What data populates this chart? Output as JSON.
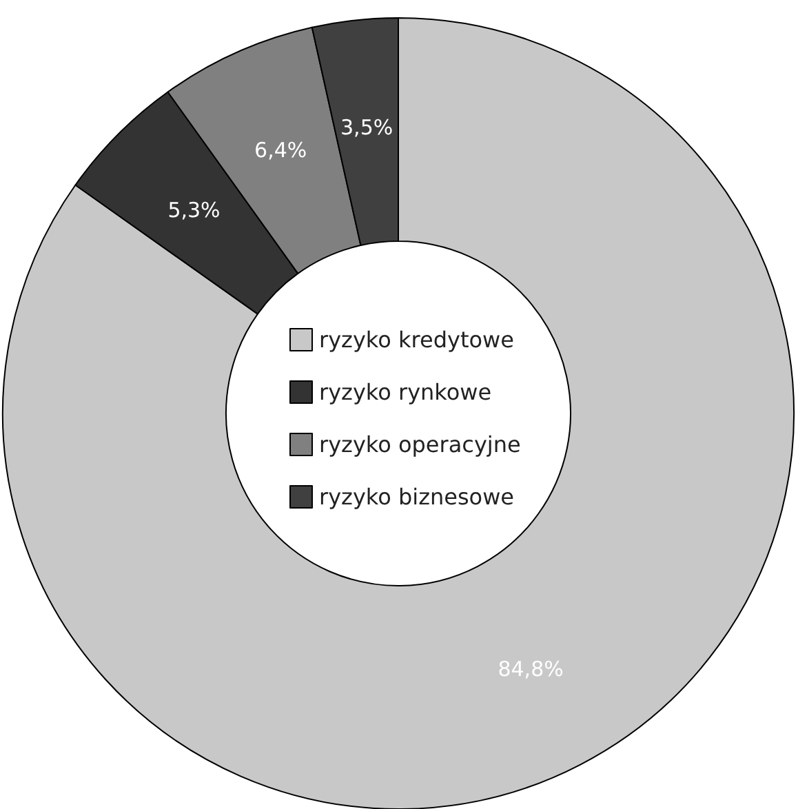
{
  "chart_data": {
    "type": "donut",
    "categories": [
      "ryzyko kredytowe",
      "ryzyko rynkowe",
      "ryzyko operacyjne",
      "ryzyko biznesowe"
    ],
    "values": [
      84.8,
      5.3,
      6.4,
      3.5
    ],
    "colors": [
      "#c8c8c8",
      "#333333",
      "#808080",
      "#404040"
    ],
    "value_labels": [
      "84,8%",
      "5,3%",
      "6,4%",
      "3,5%"
    ],
    "legend": "center"
  }
}
